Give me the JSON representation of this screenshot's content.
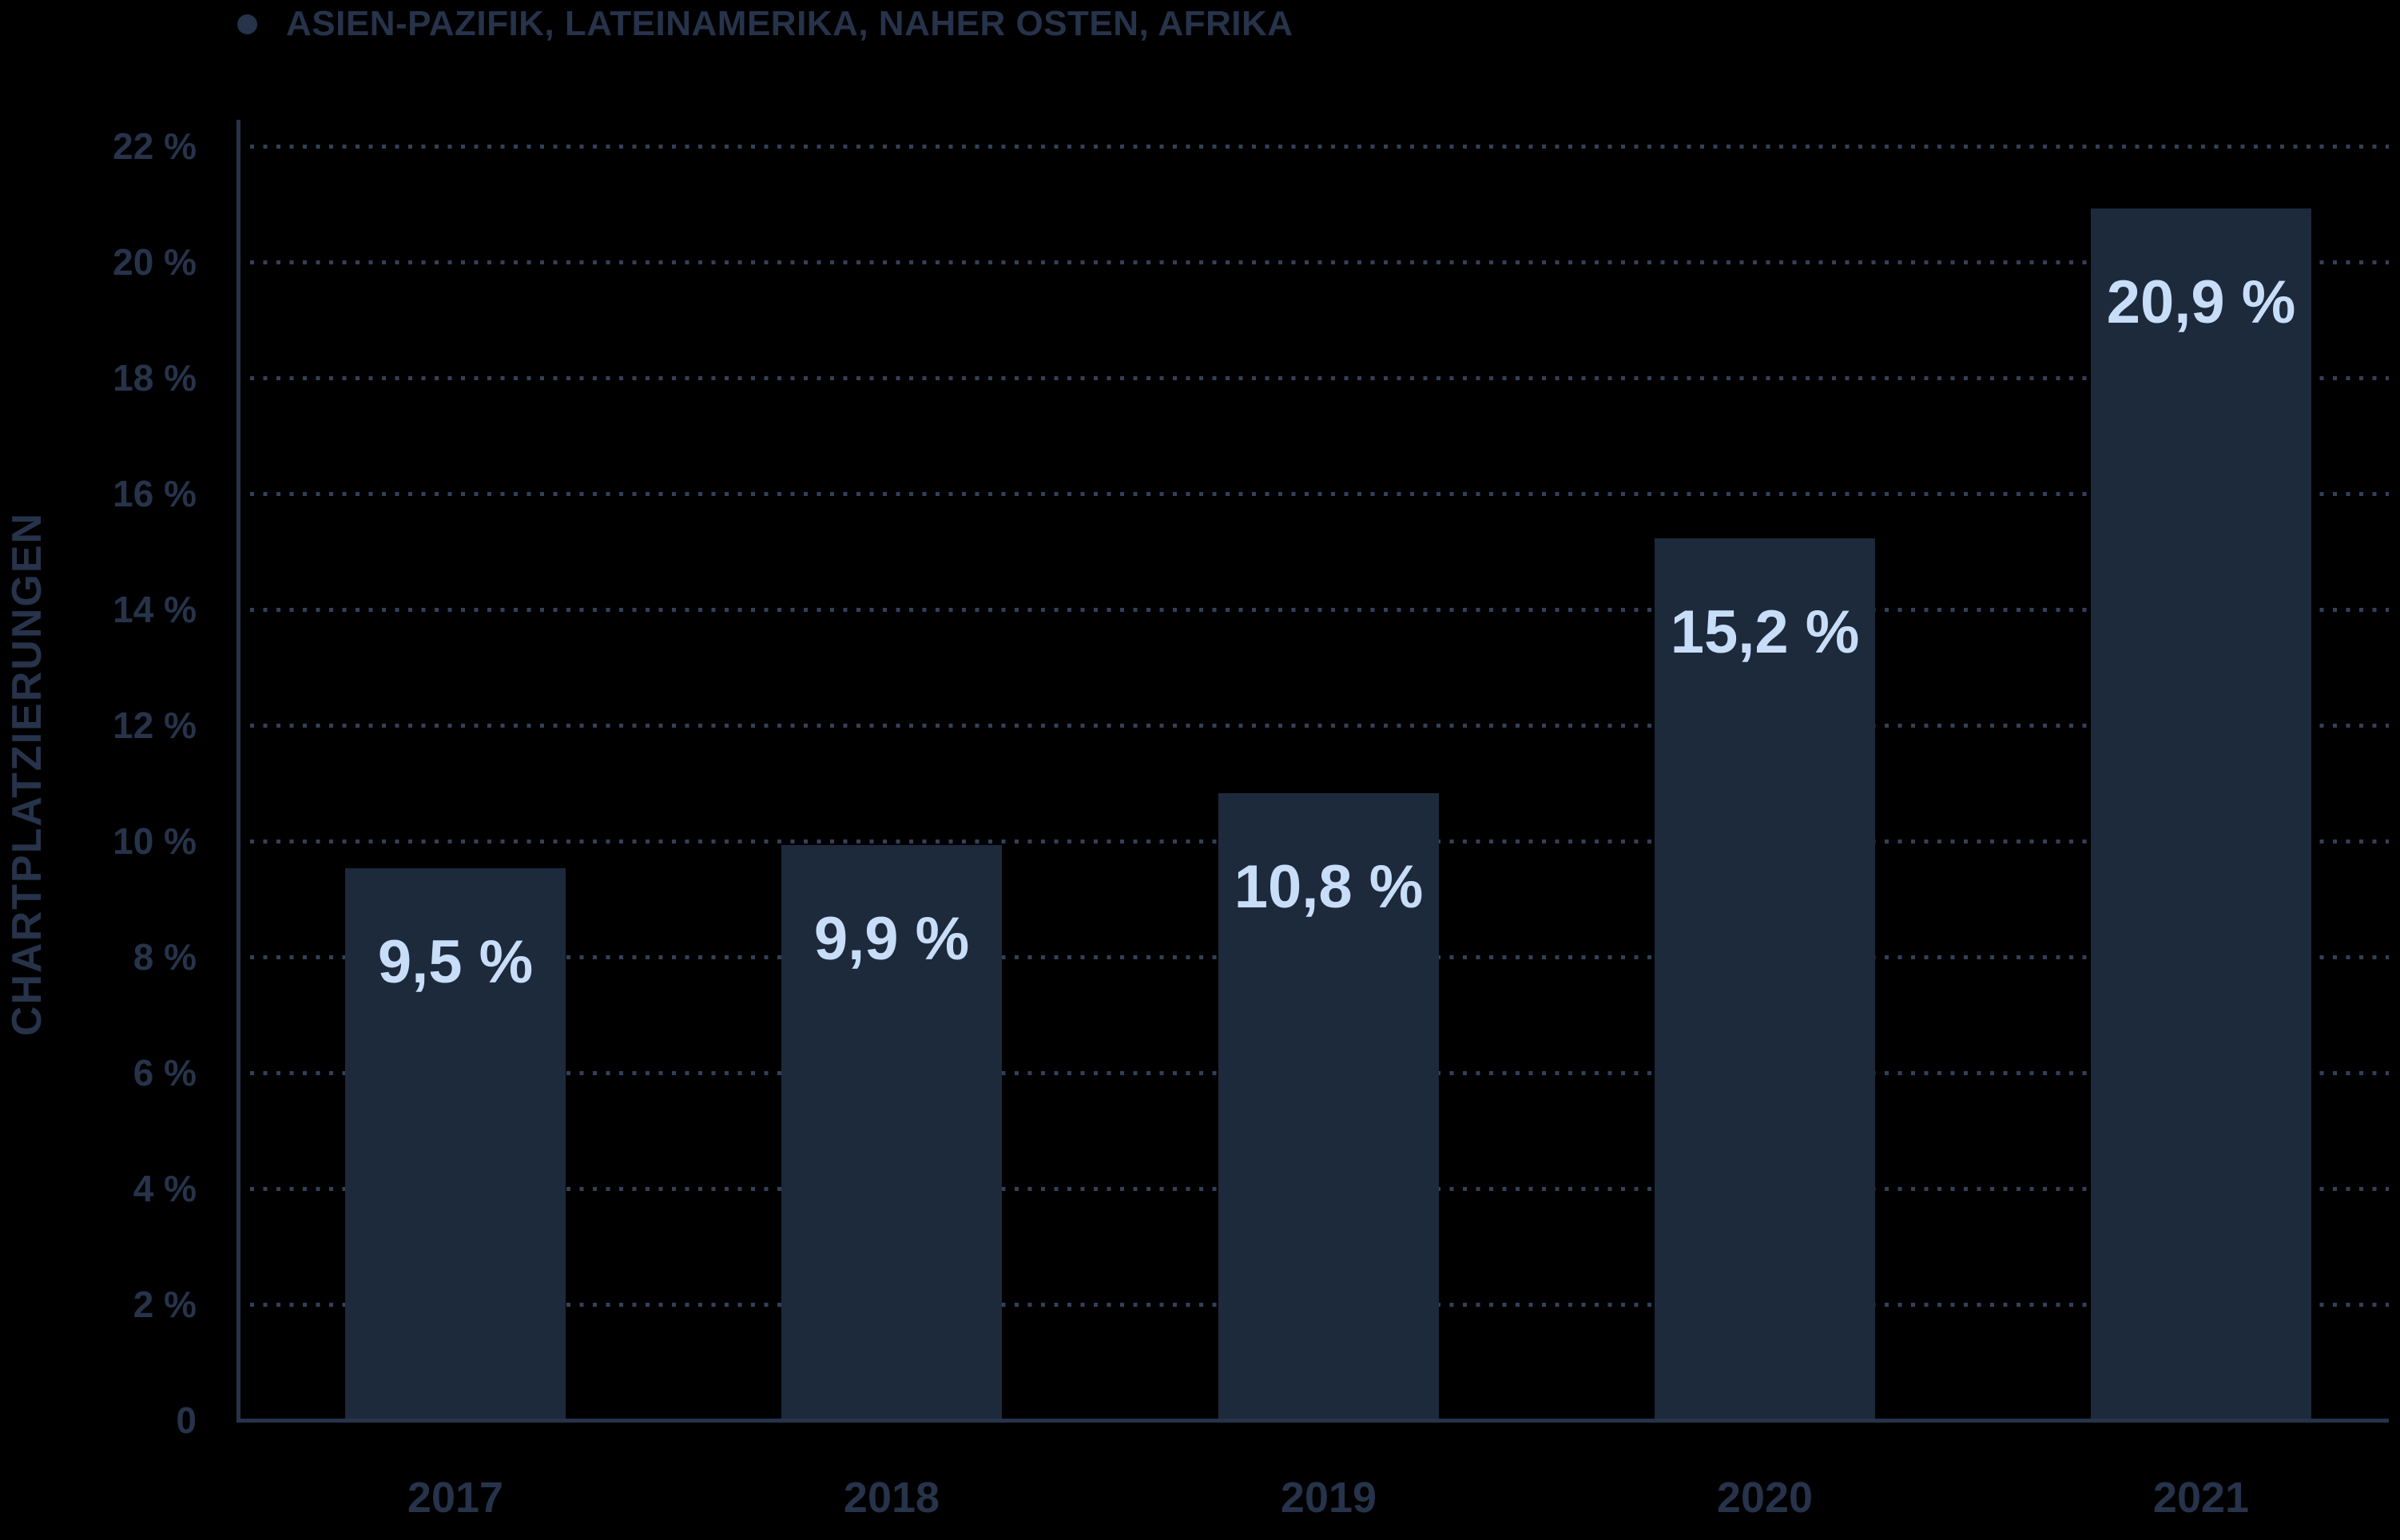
{
  "legend": {
    "label": "ASIEN-PAZIFIK, LATEINAMERIKA, NAHER OSTEN, AFRIKA"
  },
  "chart_data": {
    "type": "bar",
    "title": "",
    "series_name": "ASIEN-PAZIFIK, LATEINAMERIKA, NAHER OSTEN, AFRIKA",
    "categories": [
      "2017",
      "2018",
      "2019",
      "2020",
      "2021"
    ],
    "values": [
      9.5,
      9.9,
      10.8,
      15.2,
      20.9
    ],
    "value_labels": [
      "9,5 %",
      "9,9 %",
      "10,8 %",
      "15,2 %",
      "20,9 %"
    ],
    "xlabel": "",
    "ylabel": "CHARTPLATZIERUNGEN",
    "ylim": [
      0,
      22
    ],
    "ytick_step": 2,
    "ytick_labels": [
      "0",
      "2 %",
      "4 %",
      "6 %",
      "8 %",
      "10 %",
      "12 %",
      "14 %",
      "16 %",
      "18 %",
      "20 %",
      "22 %"
    ],
    "grid": "horizontal-dotted",
    "legend_position": "top-left",
    "colors": {
      "background": "#000000",
      "bar": "#1d2a3c",
      "value_label": "#c8ddf8",
      "axis_text": "#26334a",
      "grid_dot": "#32415a",
      "axis_line": "#26344b"
    }
  }
}
